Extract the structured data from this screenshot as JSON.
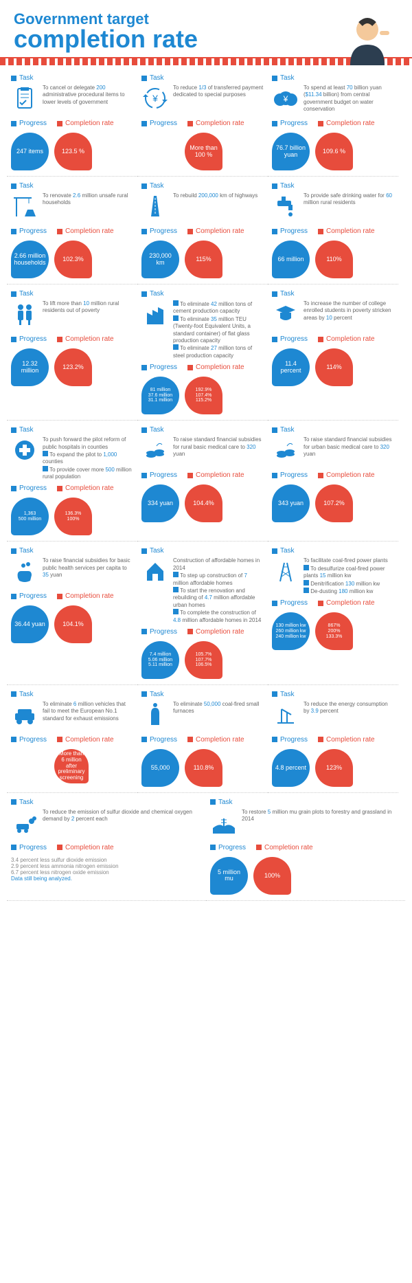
{
  "title_top": "Government target",
  "title_bot": "completion rate",
  "labels": {
    "task": "Task",
    "progress": "Progress",
    "rate": "Completion rate"
  },
  "colors": {
    "blue": "#1e88d2",
    "red": "#e74c3c"
  },
  "cards": [
    {
      "icon": "clipboard",
      "desc": "To cancel or delegate <span class='hl'>200</span> administrative procedural items to lower levels of government",
      "p": "247 items",
      "r": "123.5 %"
    },
    {
      "icon": "cycle",
      "desc": "To reduce <span class='hl'>1/3</span> of transferred payment dedicated to special purposes",
      "p": "",
      "r": "More than 100 %"
    },
    {
      "icon": "money",
      "desc": "To spend at least <span class='hl'>70</span> billion yuan (<span class='hl'>$11.34</span> billion) from central government budget on water conservation",
      "p": "76.7 billion yuan",
      "r": "109.6 %"
    },
    {
      "icon": "crane",
      "desc": "To renovate <span class='hl'>2.6</span> million unsafe rural households",
      "p": "2.66 million households",
      "r": "102.3%"
    },
    {
      "icon": "road",
      "desc": "To rebuild <span class='hl'>200,000</span> km of highways",
      "p": "230,000 km",
      "r": "115%"
    },
    {
      "icon": "tap",
      "desc": "To provide safe drinking water for <span class='hl'>60</span> million rural residents",
      "p": "66 million",
      "r": "110%"
    },
    {
      "icon": "people",
      "desc": "To lift more than <span class='hl'>10</span> million rural residents out of poverty",
      "p": "12.32 million",
      "r": "123.2%"
    },
    {
      "icon": "factory",
      "desc": "<span class='sq bl'></span> To eliminate <span class='hl'>42</span> million tons of cement production capacity<br><span class='sq bl'></span> To eliminate <span class='hl'>35</span> million TEU (Twenty-foot Equivalent Units, a standard container) of flat glass production capacity<br><span class='sq bl'></span> To eliminate <span class='hl'>27</span> million tons of steel production capacity",
      "p": "81 million\n37.6 million\n31.1 million",
      "r": "192.9%\n107.4%\n115.2%",
      "multi": true
    },
    {
      "icon": "grad",
      "desc": "To increase the number of college enrolled students in poverty stricken areas by <span class='hl'>10</span> percent",
      "p": "11.4 percent",
      "r": "114%"
    },
    {
      "icon": "cross",
      "desc": "To push forward the pilot reform of public hospitals in counties<br><span class='sq bl'></span> To expand the pilot to <span class='hl'>1,000</span> counties<br><span class='sq bl'></span> To provide cover more <span class='hl'>500</span> million rural population",
      "p": "1,363\n500 million",
      "r": "136.3%\n100%",
      "multi": true
    },
    {
      "icon": "coins",
      "desc": "To raise standard financial subsidies for rural basic medical care to <span class='hl'>320</span> yuan",
      "p": "334 yuan",
      "r": "104.4%"
    },
    {
      "icon": "coins",
      "desc": "To raise standard financial subsidies for urban basic medical care to <span class='hl'>320</span> yuan",
      "p": "343 yuan",
      "r": "107.2%"
    },
    {
      "icon": "hand",
      "desc": "To raise financial subsidies for basic public health services per capita to <span class='hl'>35</span> yuan",
      "p": "36.44 yuan",
      "r": "104.1%"
    },
    {
      "icon": "house",
      "desc": "Construction of affordable homes in 2014<br><span class='sq bl'></span> To step up construction of <span class='hl'>7</span> million affordable homes<br><span class='sq bl'></span> To start the renovation and rebuilding of <span class='hl'>4.7</span> million affordable urban homes<br><span class='sq bl'></span> To complete the construction of <span class='hl'>4.8</span> million affordable homes in 2014",
      "p": "7.4 million\n5.06 million\n5.11 million",
      "r": "105.7%\n107.7%\n106.5%",
      "multi": true
    },
    {
      "icon": "tower",
      "desc": "To facilitate coal-fired power plants<br><span class='sq bl'></span> To desulfurize coal-fired power plants <span class='hl'>15</span> million kw<br><span class='sq bl'></span> Denitrification <span class='hl'>130</span> million kw<br><span class='sq bl'></span> De-dusting <span class='hl'>180</span> million kw",
      "p": "130 million kw\n260 million kw\n240 million kw",
      "r": "867%\n200%\n133.3%",
      "multi": true
    },
    {
      "icon": "car",
      "desc": "To eliminate <span class='hl'>6</span> million vehicles that fail to meet the European No.1 standard for exhaust emissions",
      "p": "",
      "r": "More than 6 million after preliminary screening",
      "rsmall": true
    },
    {
      "icon": "furnace",
      "desc": "To eliminate <span class='hl'>50,000</span> coal-fired small furnaces",
      "p": "55,000",
      "r": "110.8%"
    },
    {
      "icon": "pump",
      "desc": "To reduce the energy consumption by <span class='hl'>3.9</span> percent",
      "p": "4.8 percent",
      "r": "123%"
    },
    {
      "icon": "smoke",
      "desc": "To reduce the emission of sulfur dioxide and chemical oxygen demand by <span class='hl'>2</span> percent each",
      "note": "3.4 percent less sulfur dioxide emission<br>2.9 percent less ammonia nitrogen emission<br>6.7 percent less nitrogen oxide emission<br><span style='color:#1e88d2'>Data still being analyzed.</span>",
      "w2": true
    },
    {
      "icon": "field",
      "desc": "To restore <span class='hl'>5</span> million mu grain plots to forestry and grassland in 2014",
      "p": "5 million mu",
      "r": "100%",
      "w2": true
    }
  ]
}
